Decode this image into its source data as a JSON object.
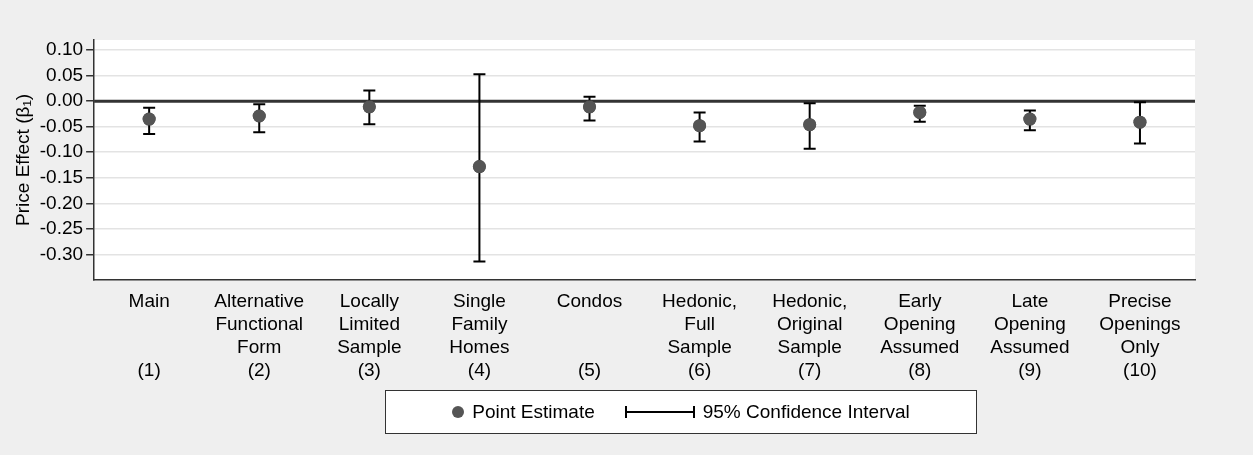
{
  "chart_data": {
    "type": "scatter",
    "ylabel": "Price Effect (β₁)",
    "categories": [
      "Main\n\n\n(1)",
      "Alternative\nFunctional\nForm\n(2)",
      "Locally\nLimited\nSample\n(3)",
      "Single\nFamily\nHomes\n(4)",
      "Condos\n\n\n(5)",
      "Hedonic,\nFull\nSample\n(6)",
      "Hedonic,\nOriginal\nSample\n(7)",
      "Early\nOpening\nAssumed\n(8)",
      "Late\nOpening\nAssumed\n(9)",
      "Precise\nOpenings\nOnly\n(10)"
    ],
    "series": [
      {
        "name": "Point Estimate",
        "color": "#555555",
        "values": [
          -0.035,
          -0.029,
          -0.011,
          -0.128,
          -0.011,
          -0.048,
          -0.046,
          -0.022,
          -0.035,
          -0.041
        ],
        "errors": [
          [
            -0.064,
            -0.013
          ],
          [
            -0.061,
            -0.006
          ],
          [
            -0.045,
            0.021
          ],
          [
            -0.314,
            0.053
          ],
          [
            -0.038,
            0.009
          ],
          [
            -0.079,
            -0.022
          ],
          [
            -0.093,
            -0.004
          ],
          [
            -0.04,
            -0.009
          ],
          [
            -0.057,
            -0.018
          ],
          [
            -0.083,
            -0.002
          ]
        ]
      }
    ],
    "ylim": [
      -0.35,
      0.12
    ],
    "yticks": [
      {
        "value": 0.1,
        "label": "0.10"
      },
      {
        "value": 0.05,
        "label": "0.05"
      },
      {
        "value": 0,
        "label": "0.00"
      },
      {
        "value": -0.05,
        "label": "-0.05"
      },
      {
        "value": -0.1,
        "label": "-0.10"
      },
      {
        "value": -0.15,
        "label": "-0.15"
      },
      {
        "value": -0.2,
        "label": "-0.20"
      },
      {
        "value": -0.25,
        "label": "-0.25"
      },
      {
        "value": -0.3,
        "label": "-0.30"
      }
    ],
    "ref_lines": [
      {
        "axis": "y",
        "value": 0,
        "color": "#333333"
      }
    ],
    "annotations": [
      "95% Confidence Interval"
    ],
    "grid": "y",
    "legend": "bottom",
    "marker": "circle"
  }
}
